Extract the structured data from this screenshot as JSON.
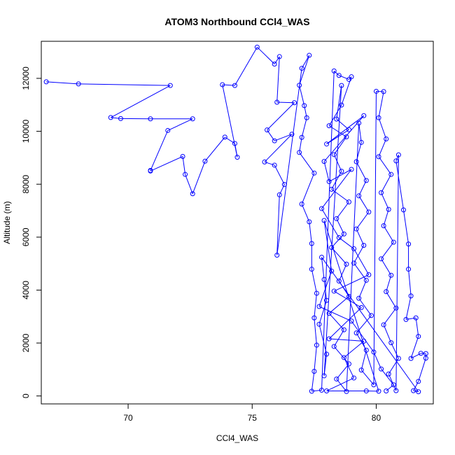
{
  "chart_data": {
    "type": "scatter",
    "title": "ATOM3 Northbound CCl4_WAS",
    "xlabel": "CCl4_WAS",
    "ylabel": "Altitude (m)",
    "xlim": [
      66.5,
      82.3
    ],
    "ylim": [
      -300,
      13400
    ],
    "xticks": [
      70,
      75,
      80
    ],
    "yticks": [
      0,
      2000,
      4000,
      6000,
      8000,
      10000,
      12000
    ],
    "grid": false,
    "legend": "none",
    "series_color": "#0000ff",
    "series": [
      {
        "values": [
          [
            66.7,
            11870
          ],
          [
            68.0,
            11790
          ],
          [
            71.7,
            11730
          ],
          [
            69.3,
            10520
          ],
          [
            69.7,
            10480
          ],
          [
            70.9,
            10470
          ],
          [
            72.6,
            10470
          ],
          [
            71.6,
            10030
          ],
          [
            70.9,
            8520
          ],
          [
            70.9,
            8500
          ],
          [
            72.2,
            9050
          ],
          [
            72.3,
            8370
          ],
          [
            72.6,
            7640
          ],
          [
            73.1,
            8870
          ],
          [
            73.9,
            9780
          ],
          [
            74.3,
            9540
          ],
          [
            74.4,
            9020
          ],
          [
            73.8,
            11760
          ],
          [
            74.3,
            11730
          ],
          [
            75.2,
            13180
          ],
          [
            75.9,
            12540
          ],
          [
            76.1,
            12820
          ],
          [
            76.0,
            11100
          ],
          [
            76.7,
            11080
          ],
          [
            75.6,
            10050
          ],
          [
            75.9,
            9640
          ],
          [
            76.6,
            9890
          ],
          [
            75.5,
            8840
          ],
          [
            75.9,
            8720
          ],
          [
            76.3,
            7990
          ],
          [
            76.1,
            7600
          ],
          [
            76.0,
            5320
          ],
          [
            77.0,
            12380
          ],
          [
            77.3,
            12870
          ],
          [
            76.9,
            11740
          ],
          [
            77.1,
            10970
          ],
          [
            77.2,
            10510
          ],
          [
            77.0,
            9770
          ],
          [
            76.9,
            9200
          ],
          [
            77.5,
            8420
          ],
          [
            77.0,
            7250
          ],
          [
            77.3,
            6580
          ],
          [
            77.4,
            5760
          ],
          [
            77.4,
            4790
          ],
          [
            77.6,
            3880
          ],
          [
            77.5,
            2950
          ],
          [
            77.6,
            1920
          ],
          [
            77.5,
            930
          ],
          [
            77.4,
            180
          ],
          [
            77.8,
            220
          ],
          [
            78.3,
            12280
          ],
          [
            78.5,
            12110
          ],
          [
            78.9,
            11960
          ],
          [
            79.0,
            12060
          ],
          [
            78.6,
            10990
          ],
          [
            78.1,
            10210
          ],
          [
            78.8,
            9790
          ],
          [
            78.3,
            9120
          ],
          [
            78.6,
            8490
          ],
          [
            78.2,
            7810
          ],
          [
            78.9,
            7330
          ],
          [
            78.4,
            6700
          ],
          [
            78.7,
            6120
          ],
          [
            78.2,
            5610
          ],
          [
            78.8,
            4980
          ],
          [
            78.5,
            4340
          ],
          [
            78.9,
            3760
          ],
          [
            78.1,
            3120
          ],
          [
            78.7,
            2500
          ],
          [
            78.3,
            1870
          ],
          [
            78.9,
            1210
          ],
          [
            78.4,
            640
          ],
          [
            78.8,
            170
          ],
          [
            79.3,
            10310
          ],
          [
            79.4,
            9580
          ],
          [
            79.2,
            8850
          ],
          [
            79.6,
            8140
          ],
          [
            79.3,
            7560
          ],
          [
            79.7,
            6950
          ],
          [
            79.2,
            6310
          ],
          [
            79.5,
            5690
          ],
          [
            79.1,
            5020
          ],
          [
            79.6,
            4370
          ],
          [
            79.3,
            3690
          ],
          [
            79.8,
            3040
          ],
          [
            79.2,
            2380
          ],
          [
            79.6,
            1730
          ],
          [
            79.4,
            980
          ],
          [
            79.9,
            420
          ],
          [
            80.0,
            11510
          ],
          [
            80.3,
            11500
          ],
          [
            80.1,
            10510
          ],
          [
            80.4,
            9710
          ],
          [
            80.1,
            9040
          ],
          [
            80.6,
            8370
          ],
          [
            80.2,
            7680
          ],
          [
            80.5,
            7050
          ],
          [
            80.3,
            6430
          ],
          [
            80.7,
            5810
          ],
          [
            80.2,
            5180
          ],
          [
            80.6,
            4560
          ],
          [
            80.4,
            3940
          ],
          [
            80.8,
            3320
          ],
          [
            80.3,
            2690
          ],
          [
            80.6,
            2010
          ],
          [
            80.9,
            1420
          ],
          [
            80.5,
            830
          ],
          [
            80.8,
            200
          ],
          [
            80.9,
            9110
          ],
          [
            80.8,
            8880
          ],
          [
            81.1,
            7030
          ],
          [
            81.3,
            5740
          ],
          [
            81.3,
            4790
          ],
          [
            81.4,
            3780
          ],
          [
            81.2,
            2890
          ],
          [
            81.6,
            2950
          ],
          [
            81.7,
            2250
          ],
          [
            81.4,
            1420
          ],
          [
            81.8,
            1610
          ],
          [
            82.0,
            1600
          ],
          [
            82.0,
            1430
          ],
          [
            81.7,
            550
          ],
          [
            81.5,
            200
          ],
          [
            81.7,
            160
          ],
          [
            77.8,
            5240
          ],
          [
            77.9,
            4400
          ],
          [
            78.0,
            3610
          ],
          [
            77.7,
            2710
          ],
          [
            78.0,
            1580
          ],
          [
            77.9,
            760
          ],
          [
            78.6,
            11730
          ],
          [
            78.4,
            10460
          ],
          [
            78.9,
            10060
          ],
          [
            78.0,
            9520
          ],
          [
            79.5,
            10590
          ],
          [
            77.9,
            8860
          ],
          [
            78.1,
            8100
          ],
          [
            79.0,
            8560
          ],
          [
            77.8,
            7080
          ],
          [
            78.5,
            5980
          ],
          [
            79.1,
            5560
          ],
          [
            79.7,
            4580
          ],
          [
            78.3,
            3960
          ],
          [
            79.4,
            3340
          ],
          [
            78.1,
            2160
          ],
          [
            79.5,
            2070
          ],
          [
            78.7,
            1450
          ],
          [
            79.1,
            680
          ],
          [
            78.0,
            190
          ],
          [
            79.6,
            190
          ],
          [
            80.1,
            180
          ],
          [
            77.9,
            6630
          ],
          [
            78.2,
            4720
          ],
          [
            77.7,
            3380
          ],
          [
            79.0,
            2830
          ],
          [
            79.9,
            1660
          ],
          [
            80.2,
            1020
          ],
          [
            80.7,
            420
          ],
          [
            80.4,
            190
          ]
        ]
      }
    ]
  }
}
